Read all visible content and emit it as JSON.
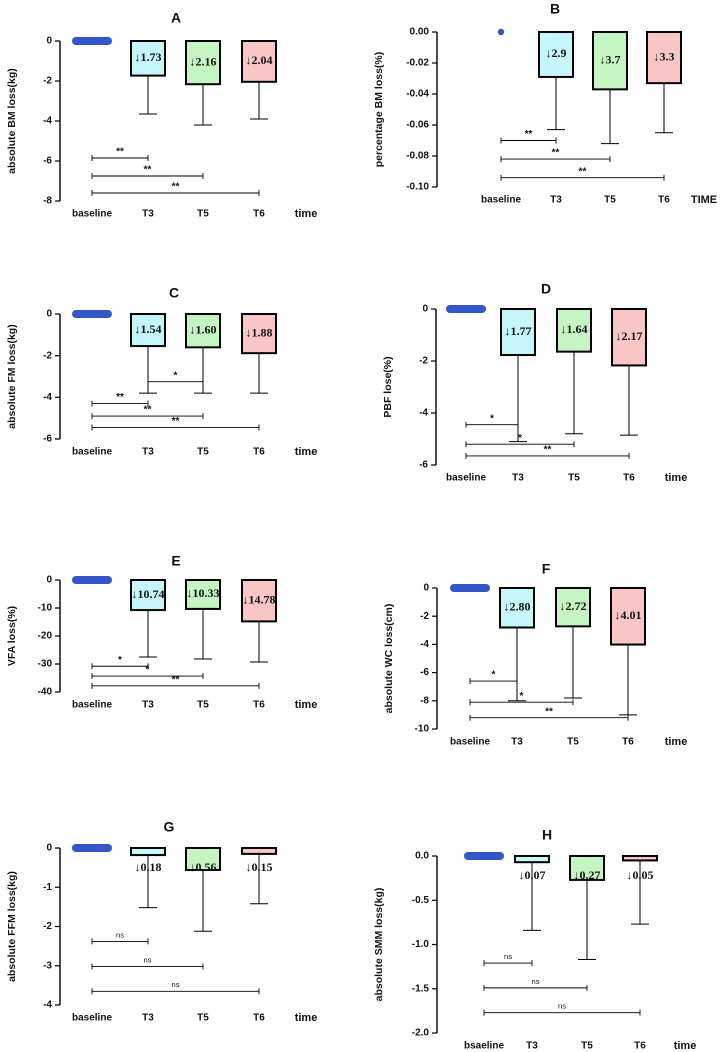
{
  "colors": {
    "baseline": "#3357c8",
    "T3": "#c4f6fb",
    "T5": "#c4f5c2",
    "T6": "#f9c6c6",
    "axis": "#000000"
  },
  "chart_data": [
    {
      "panel": "A",
      "type": "bar",
      "title": "A",
      "ylabel": "absolute BM loss(kg)",
      "xlabel": "time",
      "ylim": [
        -8,
        0
      ],
      "yticks": [
        0,
        -2,
        -4,
        -6,
        -8
      ],
      "ytick_labels": [
        "0",
        "-2",
        "-4",
        "-6",
        "-8"
      ],
      "categories": [
        "baseline",
        "T3",
        "T5",
        "T6"
      ],
      "values": [
        0,
        -1.73,
        -2.16,
        -2.04
      ],
      "error_low": [
        0,
        -3.65,
        -4.2,
        -3.9
      ],
      "bar_labels": [
        "",
        "↓1.73",
        "↓2.16",
        "↓2.04"
      ],
      "significance": [
        {
          "from": 0,
          "to": 1,
          "y": -5.85,
          "label": "**"
        },
        {
          "from": 0,
          "to": 2,
          "y": -6.75,
          "label": "**"
        },
        {
          "from": 0,
          "to": 3,
          "y": -7.6,
          "label": "**"
        }
      ]
    },
    {
      "panel": "B",
      "type": "bar",
      "title": "B",
      "ylabel": "percentage BM loss(%)",
      "xlabel": "TIME",
      "ylim": [
        -0.1,
        0
      ],
      "yticks": [
        0,
        -0.02,
        -0.04,
        -0.06,
        -0.08,
        -0.1
      ],
      "ytick_labels": [
        "0.00",
        "-0.02",
        "-0.04",
        "-0.06",
        "-0.08",
        "-0.10"
      ],
      "categories": [
        "baseline",
        "T3",
        "T5",
        "T6"
      ],
      "values": [
        0,
        -0.029,
        -0.037,
        -0.033
      ],
      "error_low": [
        0,
        -0.063,
        -0.072,
        -0.065
      ],
      "bar_labels": [
        "",
        "↓2.9",
        "↓3.7",
        "↓3.3"
      ],
      "significance": [
        {
          "from": 0,
          "to": 1,
          "y": -0.07,
          "label": "**"
        },
        {
          "from": 0,
          "to": 2,
          "y": -0.082,
          "label": "**"
        },
        {
          "from": 0,
          "to": 3,
          "y": -0.094,
          "label": "**"
        }
      ]
    },
    {
      "panel": "C",
      "type": "bar",
      "title": "C",
      "ylabel": "absolute FM loss(kg)",
      "xlabel": "time",
      "ylim": [
        -6,
        0
      ],
      "yticks": [
        0,
        -2,
        -4,
        -6
      ],
      "ytick_labels": [
        "0",
        "-2",
        "-4",
        "-6"
      ],
      "categories": [
        "baseline",
        "T3",
        "T5",
        "T6"
      ],
      "values": [
        0,
        -1.54,
        -1.6,
        -1.88
      ],
      "error_low": [
        0,
        -3.8,
        -3.8,
        -3.8
      ],
      "bar_labels": [
        "",
        "↓1.54",
        "↓1.60",
        "↓1.88"
      ],
      "significance": [
        {
          "from": 1,
          "to": 2,
          "y": -3.25,
          "label": "*"
        },
        {
          "from": 0,
          "to": 1,
          "y": -4.3,
          "label": "**"
        },
        {
          "from": 0,
          "to": 2,
          "y": -4.9,
          "label": "**"
        },
        {
          "from": 0,
          "to": 3,
          "y": -5.45,
          "label": "**"
        }
      ]
    },
    {
      "panel": "D",
      "type": "bar",
      "title": "D",
      "ylabel": "PBF lose(%)",
      "xlabel": "time",
      "ylim": [
        -6,
        0
      ],
      "yticks": [
        0,
        -2,
        -4,
        -6
      ],
      "ytick_labels": [
        "0",
        "-2",
        "-4",
        "-6"
      ],
      "categories": [
        "baseline",
        "T3",
        "T5",
        "T6"
      ],
      "values": [
        0,
        -1.77,
        -1.64,
        -2.17
      ],
      "error_low": [
        0,
        -5.1,
        -4.8,
        -4.85
      ],
      "bar_labels": [
        "",
        "↓1.77",
        "↓1.64",
        "↓2.17"
      ],
      "significance": [
        {
          "from": 0,
          "to": 1,
          "y": -4.45,
          "label": "*"
        },
        {
          "from": 0,
          "to": 2,
          "y": -5.2,
          "label": "*"
        },
        {
          "from": 0,
          "to": 3,
          "y": -5.65,
          "label": "**"
        }
      ]
    },
    {
      "panel": "E",
      "type": "bar",
      "title": "E",
      "ylabel": "VFA loss(%)",
      "xlabel": "time",
      "ylim": [
        -40,
        0
      ],
      "yticks": [
        0,
        -10,
        -20,
        -30,
        -40
      ],
      "ytick_labels": [
        "0",
        "-10",
        "-20",
        "-30",
        "-40"
      ],
      "categories": [
        "baseline",
        "T3",
        "T5",
        "T6"
      ],
      "values": [
        0,
        -10.74,
        -10.33,
        -14.78
      ],
      "error_low": [
        0,
        -27.5,
        -28.2,
        -29.3
      ],
      "bar_labels": [
        "",
        "↓10.74",
        "↓10.33",
        "↓14.78"
      ],
      "significance": [
        {
          "from": 0,
          "to": 1,
          "y": -30.8,
          "label": "*"
        },
        {
          "from": 0,
          "to": 2,
          "y": -34.3,
          "label": "*"
        },
        {
          "from": 0,
          "to": 3,
          "y": -37.8,
          "label": "**"
        }
      ]
    },
    {
      "panel": "F",
      "type": "bar",
      "title": "F",
      "ylabel": "absolute WC loss(cm)",
      "xlabel": "time",
      "ylim": [
        -10,
        0
      ],
      "yticks": [
        0,
        -2,
        -4,
        -6,
        -8,
        -10
      ],
      "ytick_labels": [
        "0",
        "-2",
        "-4",
        "-6",
        "-8",
        "-10"
      ],
      "categories": [
        "baseline",
        "T3",
        "T5",
        "T6"
      ],
      "values": [
        0,
        -2.8,
        -2.72,
        -4.01
      ],
      "error_low": [
        0,
        -8.0,
        -7.8,
        -9.0
      ],
      "bar_labels": [
        "",
        "↓2.80",
        "↓2.72",
        "↓4.01"
      ],
      "significance": [
        {
          "from": 0,
          "to": 1,
          "y": -6.6,
          "label": "*"
        },
        {
          "from": 0,
          "to": 2,
          "y": -8.1,
          "label": "*"
        },
        {
          "from": 0,
          "to": 3,
          "y": -9.2,
          "label": "**"
        }
      ]
    },
    {
      "panel": "G",
      "type": "bar",
      "title": "G",
      "ylabel": "absolute FFM loss(kg)",
      "xlabel": "time",
      "ylim": [
        -4,
        0
      ],
      "yticks": [
        0,
        -1,
        -2,
        -3,
        -4
      ],
      "ytick_labels": [
        "0",
        "-1",
        "-2",
        "-3",
        "-4"
      ],
      "categories": [
        "baseline",
        "T3",
        "T5",
        "T6"
      ],
      "values": [
        0,
        -0.18,
        -0.56,
        -0.15
      ],
      "error_low": [
        0,
        -1.52,
        -2.12,
        -1.42
      ],
      "bar_labels": [
        "",
        "↓0.18",
        "↓0.56",
        "↓0.15"
      ],
      "label_below": true,
      "significance": [
        {
          "from": 0,
          "to": 1,
          "y": -2.38,
          "label": "ns"
        },
        {
          "from": 0,
          "to": 2,
          "y": -3.02,
          "label": "ns"
        },
        {
          "from": 0,
          "to": 3,
          "y": -3.65,
          "label": "ns"
        }
      ]
    },
    {
      "panel": "H",
      "type": "bar",
      "title": "H",
      "ylabel": "absolute SMM loss(kg)",
      "xlabel": "time",
      "ylim": [
        -2,
        0
      ],
      "yticks": [
        0,
        -0.5,
        -1,
        -1.5,
        -2
      ],
      "ytick_labels": [
        "0.0",
        "-0.5",
        "-1.0",
        "-1.5",
        "-2.0"
      ],
      "categories": [
        "bsaeline",
        "T3",
        "T5",
        "T6"
      ],
      "values": [
        0,
        -0.07,
        -0.27,
        -0.05
      ],
      "error_low": [
        0,
        -0.84,
        -1.17,
        -0.77
      ],
      "bar_labels": [
        "",
        "↓0.07",
        "↓0.27",
        "↓0.05"
      ],
      "label_below": true,
      "significance": [
        {
          "from": 0,
          "to": 1,
          "y": -1.21,
          "label": "ns"
        },
        {
          "from": 0,
          "to": 2,
          "y": -1.49,
          "label": "ns"
        },
        {
          "from": 0,
          "to": 3,
          "y": -1.77,
          "label": "ns"
        }
      ]
    }
  ]
}
